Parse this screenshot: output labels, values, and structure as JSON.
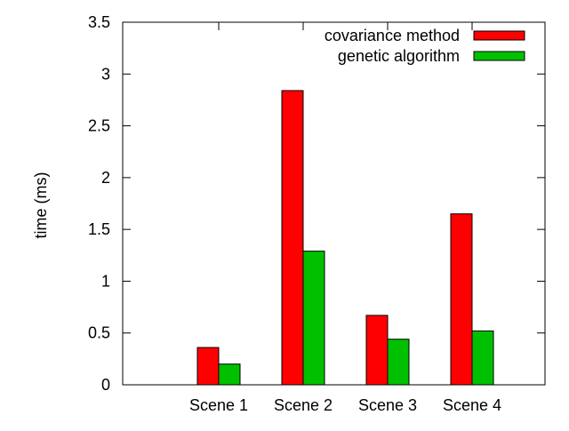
{
  "chart_data": {
    "type": "bar",
    "title": "",
    "xlabel": "",
    "ylabel": "time (ms)",
    "categories": [
      "Scene 1",
      "Scene 2",
      "Scene 3",
      "Scene 4"
    ],
    "series": [
      {
        "name": "covariance method",
        "color": "#ff0000",
        "values": [
          0.36,
          2.84,
          0.67,
          1.65
        ]
      },
      {
        "name": "genetic algorithm",
        "color": "#00c000",
        "values": [
          0.2,
          1.29,
          0.44,
          0.52
        ]
      }
    ],
    "ylim": [
      0,
      3.5
    ],
    "yticks": [
      "0",
      "0.5",
      "1",
      "1.5",
      "2",
      "2.5",
      "3",
      "3.5"
    ],
    "grid": false,
    "legend_position": "top-right"
  }
}
